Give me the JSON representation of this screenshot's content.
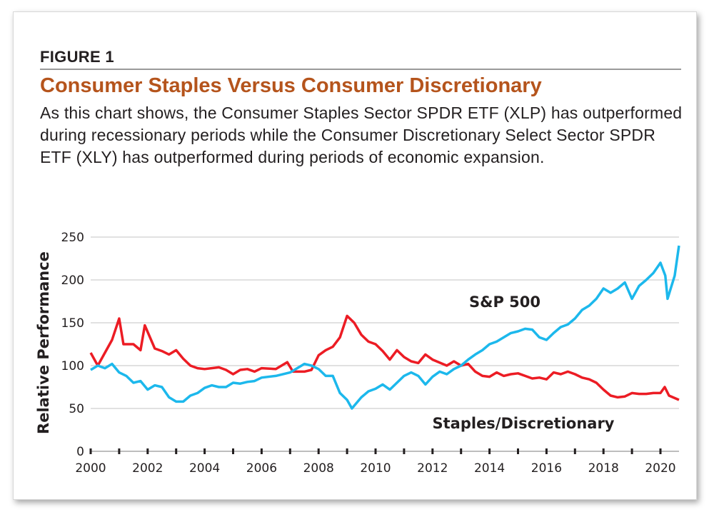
{
  "figure_label": "FIGURE 1",
  "title": "Consumer Staples Versus Consumer Discretionary",
  "description": "As this chart shows, the Consumer Staples Sector SPDR ETF (XLP) has outperformed during recessionary periods while the Consumer Discretionary Select Sector SPDR ETF (XLY) has outperformed during periods of economic expansion.",
  "chart_data": {
    "type": "line",
    "ylabel": "Relative Performance",
    "xlabel": "",
    "ylim": [
      0,
      250
    ],
    "xlim": [
      2000,
      2020.65
    ],
    "yticks": [
      "0",
      "50",
      "100",
      "150",
      "200",
      "250"
    ],
    "xticks": [
      "2000",
      "2002",
      "2004",
      "2006",
      "2008",
      "2010",
      "2012",
      "2014",
      "2016",
      "2018",
      "2020"
    ],
    "grid": "horizontal",
    "series": [
      {
        "name": "S&P 500",
        "color": "#1cb8ec",
        "points": [
          [
            2000,
            95
          ],
          [
            2000.25,
            100
          ],
          [
            2000.5,
            97
          ],
          [
            2000.75,
            102
          ],
          [
            2001,
            92
          ],
          [
            2001.25,
            88
          ],
          [
            2001.5,
            80
          ],
          [
            2001.75,
            82
          ],
          [
            2002,
            72
          ],
          [
            2002.25,
            77
          ],
          [
            2002.5,
            75
          ],
          [
            2002.75,
            63
          ],
          [
            2003,
            58
          ],
          [
            2003.25,
            58
          ],
          [
            2003.5,
            65
          ],
          [
            2003.75,
            68
          ],
          [
            2004,
            74
          ],
          [
            2004.25,
            77
          ],
          [
            2004.5,
            75
          ],
          [
            2004.75,
            75
          ],
          [
            2005,
            80
          ],
          [
            2005.25,
            79
          ],
          [
            2005.5,
            81
          ],
          [
            2005.75,
            82
          ],
          [
            2006,
            86
          ],
          [
            2006.5,
            88
          ],
          [
            2007,
            92
          ],
          [
            2007.25,
            97
          ],
          [
            2007.5,
            102
          ],
          [
            2007.75,
            100
          ],
          [
            2008,
            96
          ],
          [
            2008.25,
            88
          ],
          [
            2008.5,
            88
          ],
          [
            2008.75,
            68
          ],
          [
            2009,
            60
          ],
          [
            2009.17,
            50
          ],
          [
            2009.5,
            63
          ],
          [
            2009.75,
            70
          ],
          [
            2010,
            73
          ],
          [
            2010.25,
            78
          ],
          [
            2010.5,
            72
          ],
          [
            2010.75,
            80
          ],
          [
            2011,
            88
          ],
          [
            2011.25,
            92
          ],
          [
            2011.5,
            88
          ],
          [
            2011.75,
            78
          ],
          [
            2012,
            87
          ],
          [
            2012.25,
            93
          ],
          [
            2012.5,
            90
          ],
          [
            2012.75,
            96
          ],
          [
            2013,
            100
          ],
          [
            2013.25,
            107
          ],
          [
            2013.5,
            113
          ],
          [
            2013.75,
            118
          ],
          [
            2014,
            125
          ],
          [
            2014.25,
            128
          ],
          [
            2014.5,
            133
          ],
          [
            2014.75,
            138
          ],
          [
            2015,
            140
          ],
          [
            2015.25,
            143
          ],
          [
            2015.5,
            142
          ],
          [
            2015.75,
            133
          ],
          [
            2016,
            130
          ],
          [
            2016.25,
            138
          ],
          [
            2016.5,
            145
          ],
          [
            2016.75,
            148
          ],
          [
            2017,
            155
          ],
          [
            2017.25,
            165
          ],
          [
            2017.5,
            170
          ],
          [
            2017.75,
            178
          ],
          [
            2018,
            190
          ],
          [
            2018.25,
            185
          ],
          [
            2018.5,
            190
          ],
          [
            2018.75,
            197
          ],
          [
            2019,
            178
          ],
          [
            2019.25,
            193
          ],
          [
            2019.5,
            200
          ],
          [
            2019.75,
            208
          ],
          [
            2020,
            220
          ],
          [
            2020.17,
            205
          ],
          [
            2020.25,
            178
          ],
          [
            2020.5,
            205
          ],
          [
            2020.65,
            240
          ]
        ]
      },
      {
        "name": "Staples/Discretionary",
        "color": "#ec1c24",
        "points": [
          [
            2000,
            115
          ],
          [
            2000.25,
            100
          ],
          [
            2000.5,
            115
          ],
          [
            2000.75,
            130
          ],
          [
            2001,
            155
          ],
          [
            2001.15,
            125
          ],
          [
            2001.5,
            125
          ],
          [
            2001.75,
            118
          ],
          [
            2001.9,
            147
          ],
          [
            2002.25,
            120
          ],
          [
            2002.5,
            117
          ],
          [
            2002.75,
            113
          ],
          [
            2003,
            118
          ],
          [
            2003.25,
            108
          ],
          [
            2003.5,
            100
          ],
          [
            2003.75,
            97
          ],
          [
            2004,
            96
          ],
          [
            2004.5,
            98
          ],
          [
            2004.75,
            95
          ],
          [
            2005,
            90
          ],
          [
            2005.25,
            95
          ],
          [
            2005.5,
            96
          ],
          [
            2005.75,
            93
          ],
          [
            2006,
            97
          ],
          [
            2006.5,
            96
          ],
          [
            2006.9,
            104
          ],
          [
            2007.1,
            93
          ],
          [
            2007.5,
            93
          ],
          [
            2007.75,
            95
          ],
          [
            2008,
            112
          ],
          [
            2008.25,
            118
          ],
          [
            2008.5,
            122
          ],
          [
            2008.75,
            133
          ],
          [
            2009,
            158
          ],
          [
            2009.25,
            150
          ],
          [
            2009.5,
            136
          ],
          [
            2009.75,
            128
          ],
          [
            2010,
            125
          ],
          [
            2010.25,
            117
          ],
          [
            2010.5,
            107
          ],
          [
            2010.75,
            118
          ],
          [
            2011,
            110
          ],
          [
            2011.25,
            105
          ],
          [
            2011.5,
            103
          ],
          [
            2011.75,
            113
          ],
          [
            2012,
            107
          ],
          [
            2012.5,
            100
          ],
          [
            2012.75,
            105
          ],
          [
            2013,
            100
          ],
          [
            2013.25,
            102
          ],
          [
            2013.5,
            93
          ],
          [
            2013.75,
            88
          ],
          [
            2014,
            87
          ],
          [
            2014.25,
            92
          ],
          [
            2014.5,
            88
          ],
          [
            2014.75,
            90
          ],
          [
            2015,
            91
          ],
          [
            2015.25,
            88
          ],
          [
            2015.5,
            85
          ],
          [
            2015.75,
            86
          ],
          [
            2016,
            84
          ],
          [
            2016.25,
            92
          ],
          [
            2016.5,
            90
          ],
          [
            2016.75,
            93
          ],
          [
            2017,
            90
          ],
          [
            2017.25,
            86
          ],
          [
            2017.5,
            84
          ],
          [
            2017.75,
            80
          ],
          [
            2018,
            72
          ],
          [
            2018.25,
            65
          ],
          [
            2018.5,
            63
          ],
          [
            2018.75,
            64
          ],
          [
            2019,
            68
          ],
          [
            2019.25,
            67
          ],
          [
            2019.5,
            67
          ],
          [
            2019.75,
            68
          ],
          [
            2020,
            68
          ],
          [
            2020.15,
            75
          ],
          [
            2020.3,
            65
          ],
          [
            2020.65,
            60
          ]
        ]
      }
    ],
    "annotations": [
      {
        "text": "S&P 500",
        "series": "S&P 500",
        "at": [
          2015,
          142
        ]
      },
      {
        "text": "Staples/Discretionary",
        "series": "Staples/Discretionary",
        "at": [
          2015.2,
          85
        ]
      }
    ]
  }
}
